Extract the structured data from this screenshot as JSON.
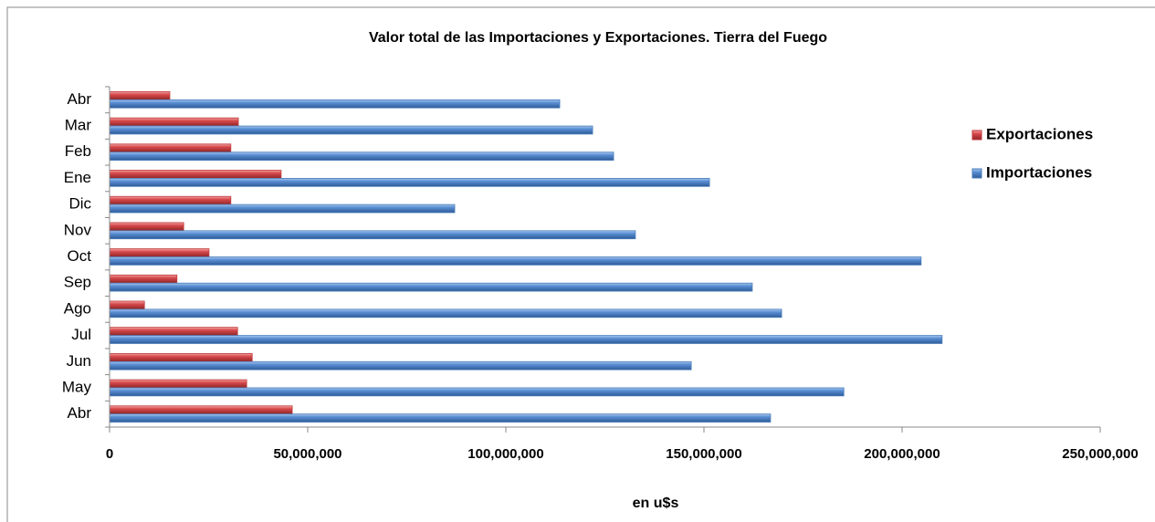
{
  "chart_data": {
    "type": "barh",
    "title": "Valor total de las Importaciones y Exportaciones. Tierra del Fuego",
    "x_label": "en u$s",
    "categories": [
      "Abr",
      "May",
      "Jun",
      "Jul",
      "Ago",
      "Sep",
      "Oct",
      "Nov",
      "Dic",
      "Ene",
      "Feb",
      "Mar",
      "Abr"
    ],
    "series": [
      {
        "name": "Exportaciones",
        "color": "#c0393b",
        "values": [
          46100000,
          34600000,
          36000000,
          32300000,
          8800000,
          17000000,
          25100000,
          18700000,
          30600000,
          43300000,
          30600000,
          32500000,
          15200000
        ]
      },
      {
        "name": "Importaciones",
        "color": "#4a7ebb",
        "values": [
          166800000,
          185300000,
          146800000,
          210100000,
          169600000,
          162200000,
          204800000,
          132700000,
          87100000,
          151400000,
          127200000,
          121900000,
          113600000
        ]
      }
    ],
    "xlim": [
      0,
      250000000
    ],
    "xticks": [
      0,
      {
        "value": 50000000,
        "label": "50,000,000"
      },
      {
        "value": 100000000,
        "label": "100,000,000"
      },
      {
        "value": 150000000,
        "label": "150,000,000"
      },
      {
        "value": 200000000,
        "label": "200,000,000"
      },
      {
        "value": 250000000,
        "label": "250,000,000"
      }
    ],
    "legend": "right",
    "grid": false
  }
}
